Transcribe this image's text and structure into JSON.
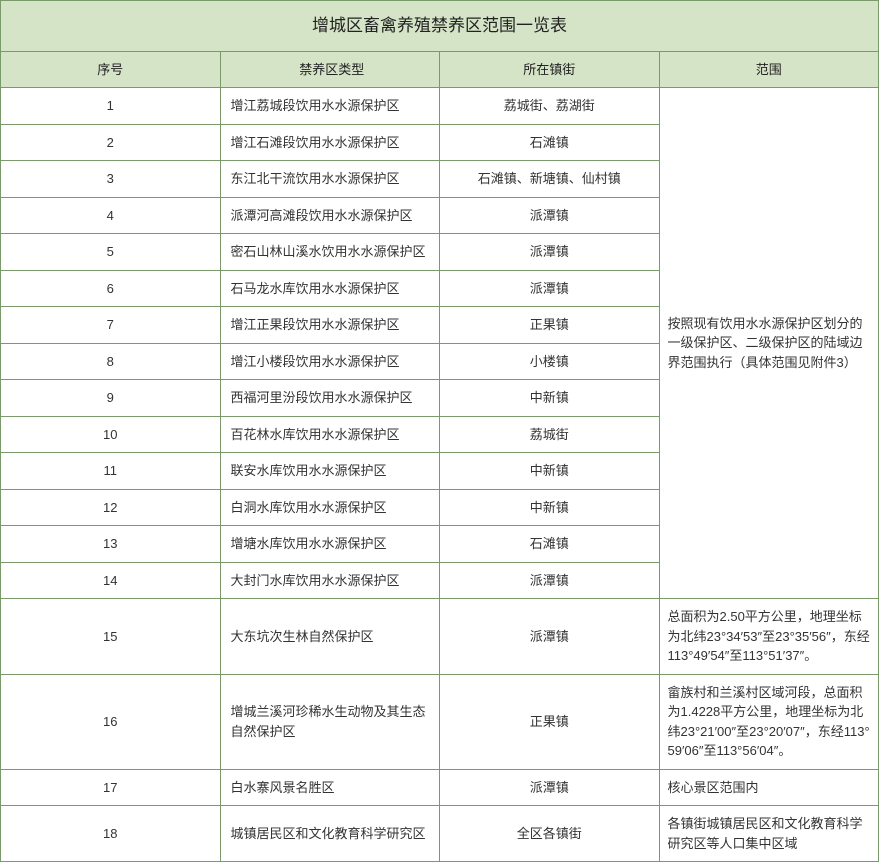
{
  "title": "增城区畜禽养殖禁养区范围一览表",
  "headers": {
    "seq": "序号",
    "type": "禁养区类型",
    "town": "所在镇街",
    "scope": "范围"
  },
  "rows": [
    {
      "seq": "1",
      "type": "增江荔城段饮用水水源保护区",
      "town": "荔城街、荔湖街"
    },
    {
      "seq": "2",
      "type": "增江石滩段饮用水水源保护区",
      "town": "石滩镇"
    },
    {
      "seq": "3",
      "type": "东江北干流饮用水水源保护区",
      "town": "石滩镇、新塘镇、仙村镇"
    },
    {
      "seq": "4",
      "type": "派潭河高滩段饮用水水源保护区",
      "town": "派潭镇"
    },
    {
      "seq": "5",
      "type": "密石山林山溪水饮用水水源保护区",
      "town": "派潭镇"
    },
    {
      "seq": "6",
      "type": "石马龙水库饮用水水源保护区",
      "town": "派潭镇"
    },
    {
      "seq": "7",
      "type": "增江正果段饮用水水源保护区",
      "town": "正果镇"
    },
    {
      "seq": "8",
      "type": "增江小楼段饮用水水源保护区",
      "town": "小楼镇"
    },
    {
      "seq": "9",
      "type": "西福河里汾段饮用水水源保护区",
      "town": "中新镇"
    },
    {
      "seq": "10",
      "type": "百花林水库饮用水水源保护区",
      "town": "荔城街"
    },
    {
      "seq": "11",
      "type": "联安水库饮用水水源保护区",
      "town": "中新镇"
    },
    {
      "seq": "12",
      "type": "白洞水库饮用水水源保护区",
      "town": "中新镇"
    },
    {
      "seq": "13",
      "type": "增塘水库饮用水水源保护区",
      "town": "石滩镇"
    },
    {
      "seq": "14",
      "type": "大封门水库饮用水水源保护区",
      "town": "派潭镇"
    },
    {
      "seq": "15",
      "type": "大东坑次生林自然保护区",
      "town": "派潭镇",
      "scope": "总面积为2.50平方公里，地理坐标为北纬23°34′53″至23°35′56″，东经113°49′54″至113°51′37″。"
    },
    {
      "seq": "16",
      "type": "增城兰溪河珍稀水生动物及其生态自然保护区",
      "town": "正果镇",
      "scope": "畲族村和兰溪村区域河段，总面积为1.4228平方公里，地理坐标为北纬23°21′00″至23°20′07″，东经113°59′06″至113°56′04″。"
    },
    {
      "seq": "17",
      "type": "白水寨风景名胜区",
      "town": "派潭镇",
      "scope": "核心景区范围内"
    },
    {
      "seq": "18",
      "type": "城镇居民区和文化教育科学研究区",
      "town": "全区各镇街",
      "scope": "各镇街城镇居民区和文化教育科学研究区等人口集中区域"
    }
  ],
  "merged_scope": "按照现有饮用水水源保护区划分的一级保护区、二级保护区的陆域边界范围执行（具体范围见附件3）",
  "colors": {
    "header_bg": "#d5e3c7",
    "border": "#7a9a6a",
    "text": "#333333"
  }
}
